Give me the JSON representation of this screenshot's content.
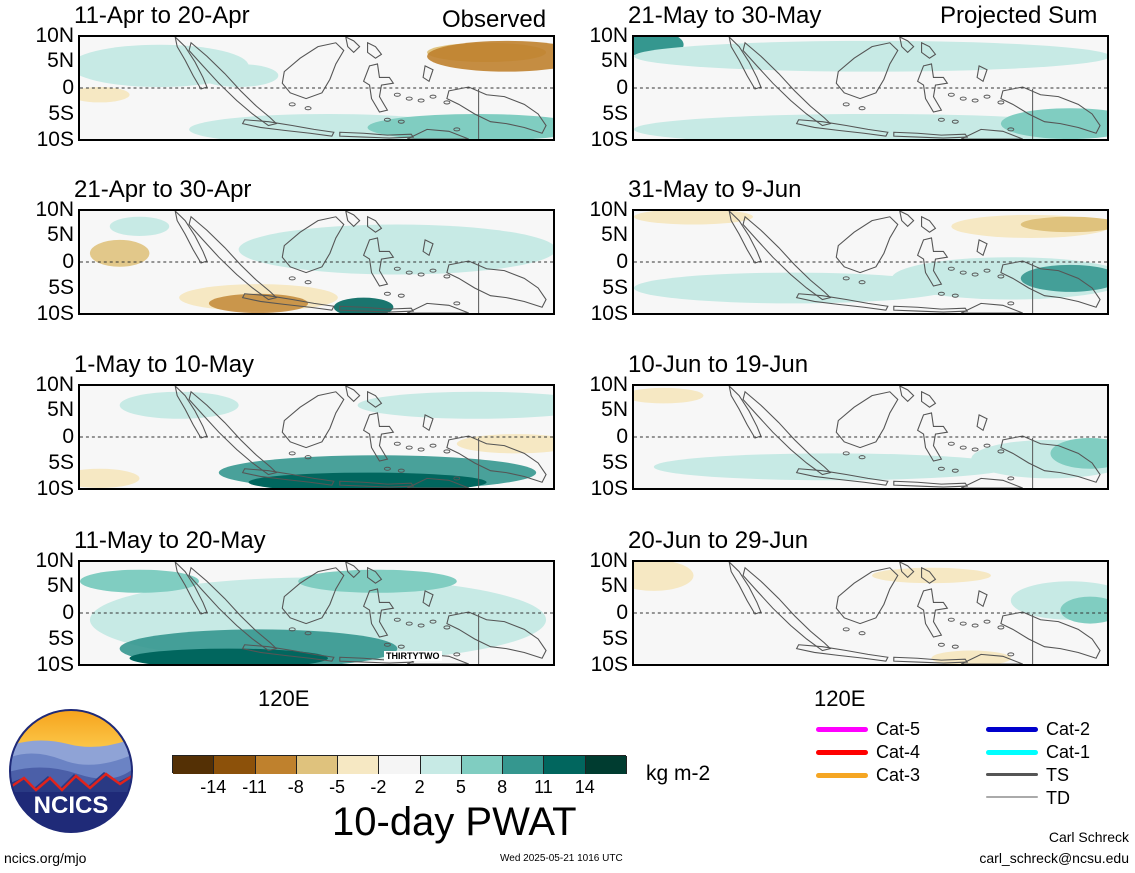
{
  "labels": {
    "observed": "Observed",
    "projected": "Projected Sum",
    "lon_label": "120E",
    "units": "kg m-2",
    "main_title": "10-day PWAT",
    "logo_text": "NCICS",
    "site": "ncics.org/mjo",
    "timestamp": "Wed 2025-05-21 1016 UTC",
    "author": "Carl Schreck",
    "email": "carl_schreck@ncsu.edu",
    "storm_label": "THIRTYTWO"
  },
  "lat_ticks": [
    "10N",
    "5N",
    "0",
    "5S",
    "10S"
  ],
  "panels_left": [
    {
      "period": "11-Apr to 20-Apr"
    },
    {
      "period": "21-Apr to 30-Apr"
    },
    {
      "period": "1-May to 10-May"
    },
    {
      "period": "11-May to 20-May"
    }
  ],
  "panels_right": [
    {
      "period": "21-May to 30-May"
    },
    {
      "period": "31-May to 9-Jun"
    },
    {
      "period": "10-Jun to 19-Jun"
    },
    {
      "period": "20-Jun to 29-Jun"
    }
  ],
  "colorbar": {
    "ticks": [
      "-14",
      "-11",
      "-8",
      "-5",
      "-2",
      "2",
      "5",
      "8",
      "11",
      "14"
    ],
    "colors": [
      "#543005",
      "#8c510a",
      "#bf812d",
      "#dfc27d",
      "#f6e8c3",
      "#f5f5f5",
      "#c7eae5",
      "#80cdc1",
      "#35978f",
      "#01665e",
      "#003c30"
    ]
  },
  "legend": {
    "left": [
      {
        "label": "Cat-5",
        "color": "#ff00ff"
      },
      {
        "label": "Cat-4",
        "color": "#ff0000"
      },
      {
        "label": "Cat-3",
        "color": "#f5a623"
      }
    ],
    "right": [
      {
        "label": "Cat-2",
        "color": "#0000cc"
      },
      {
        "label": "Cat-1",
        "color": "#00ffff"
      },
      {
        "label": "TS",
        "color": "#555555"
      },
      {
        "label": "TD",
        "color": "#aaaaaa"
      }
    ]
  }
}
